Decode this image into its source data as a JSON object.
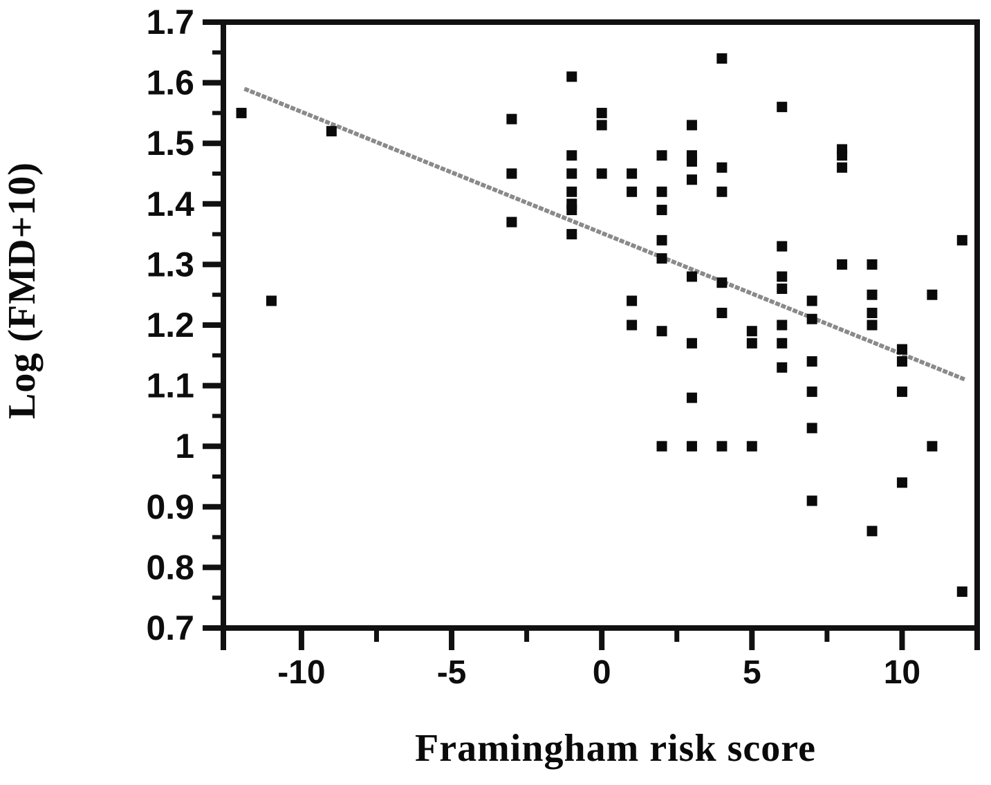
{
  "figure": {
    "background": "#ffffff",
    "frame_color": "#111111",
    "marker_color": "#0a0a0a",
    "line_color": "#8a8a8a"
  },
  "chart_data": {
    "type": "scatter",
    "title": "",
    "xlabel": "Framingham risk score",
    "ylabel": "Log (FMD+10)",
    "xlim": [
      -12.6,
      12.5
    ],
    "ylim": [
      0.7,
      1.7
    ],
    "grid": false,
    "legend": "none",
    "x_ticks": [
      -10,
      -5,
      0,
      5,
      10
    ],
    "x_tick_labels": [
      "-10",
      "-5",
      "0",
      "5",
      "10"
    ],
    "x_minor_ticks": [
      -7.5,
      -2.5,
      2.5,
      7.5
    ],
    "y_ticks": [
      1.7,
      1.6,
      1.5,
      1.4,
      1.3,
      1.2,
      1.1,
      1.0,
      0.9,
      0.8,
      0.7
    ],
    "y_tick_labels": [
      "1.7",
      "1.6",
      "1.5",
      "1.4",
      "1.3",
      "1.2",
      "1.1",
      "1",
      "0.9",
      "0.8",
      "0.7"
    ],
    "y_minor_ticks": [
      1.65,
      1.55,
      1.45,
      1.35,
      1.25,
      1.15,
      1.05,
      0.95,
      0.85,
      0.75
    ],
    "marker": "black-square",
    "points": [
      [
        -12,
        1.55
      ],
      [
        -11,
        1.24
      ],
      [
        -9,
        1.52
      ],
      [
        -3,
        1.54
      ],
      [
        -3,
        1.45
      ],
      [
        -3,
        1.37
      ],
      [
        -1,
        1.61
      ],
      [
        -1,
        1.48
      ],
      [
        -1,
        1.45
      ],
      [
        -1,
        1.42
      ],
      [
        -1,
        1.4
      ],
      [
        -1,
        1.39
      ],
      [
        -1,
        1.35
      ],
      [
        0,
        1.55
      ],
      [
        0,
        1.53
      ],
      [
        0,
        1.45
      ],
      [
        1,
        1.45
      ],
      [
        1,
        1.42
      ],
      [
        1,
        1.24
      ],
      [
        1,
        1.2
      ],
      [
        2,
        1.48
      ],
      [
        2,
        1.42
      ],
      [
        2,
        1.39
      ],
      [
        2,
        1.34
      ],
      [
        2,
        1.31
      ],
      [
        2,
        1.19
      ],
      [
        2,
        1.0
      ],
      [
        3,
        1.53
      ],
      [
        3,
        1.48
      ],
      [
        3,
        1.47
      ],
      [
        3,
        1.44
      ],
      [
        3,
        1.28
      ],
      [
        3,
        1.17
      ],
      [
        3,
        1.08
      ],
      [
        3,
        1.0
      ],
      [
        4,
        1.64
      ],
      [
        4,
        1.46
      ],
      [
        4,
        1.42
      ],
      [
        4,
        1.27
      ],
      [
        4,
        1.22
      ],
      [
        4,
        1.0
      ],
      [
        5,
        1.19
      ],
      [
        5,
        1.17
      ],
      [
        5,
        1.0
      ],
      [
        6,
        1.56
      ],
      [
        6,
        1.33
      ],
      [
        6,
        1.28
      ],
      [
        6,
        1.26
      ],
      [
        6,
        1.2
      ],
      [
        6,
        1.17
      ],
      [
        6,
        1.13
      ],
      [
        7,
        1.24
      ],
      [
        7,
        1.21
      ],
      [
        7,
        1.14
      ],
      [
        7,
        1.09
      ],
      [
        7,
        1.03
      ],
      [
        7,
        0.91
      ],
      [
        8,
        1.49
      ],
      [
        8,
        1.48
      ],
      [
        8,
        1.46
      ],
      [
        8,
        1.3
      ],
      [
        9,
        1.3
      ],
      [
        9,
        1.25
      ],
      [
        9,
        1.22
      ],
      [
        9,
        1.2
      ],
      [
        9,
        0.86
      ],
      [
        10,
        1.16
      ],
      [
        10,
        1.14
      ],
      [
        10,
        1.09
      ],
      [
        10,
        0.94
      ],
      [
        11,
        1.25
      ],
      [
        11,
        1.0
      ],
      [
        12,
        1.34
      ],
      [
        12,
        0.76
      ]
    ],
    "regression_line": {
      "x1": -11.9,
      "y1": 1.59,
      "x2": 12.1,
      "y2": 1.11
    }
  }
}
